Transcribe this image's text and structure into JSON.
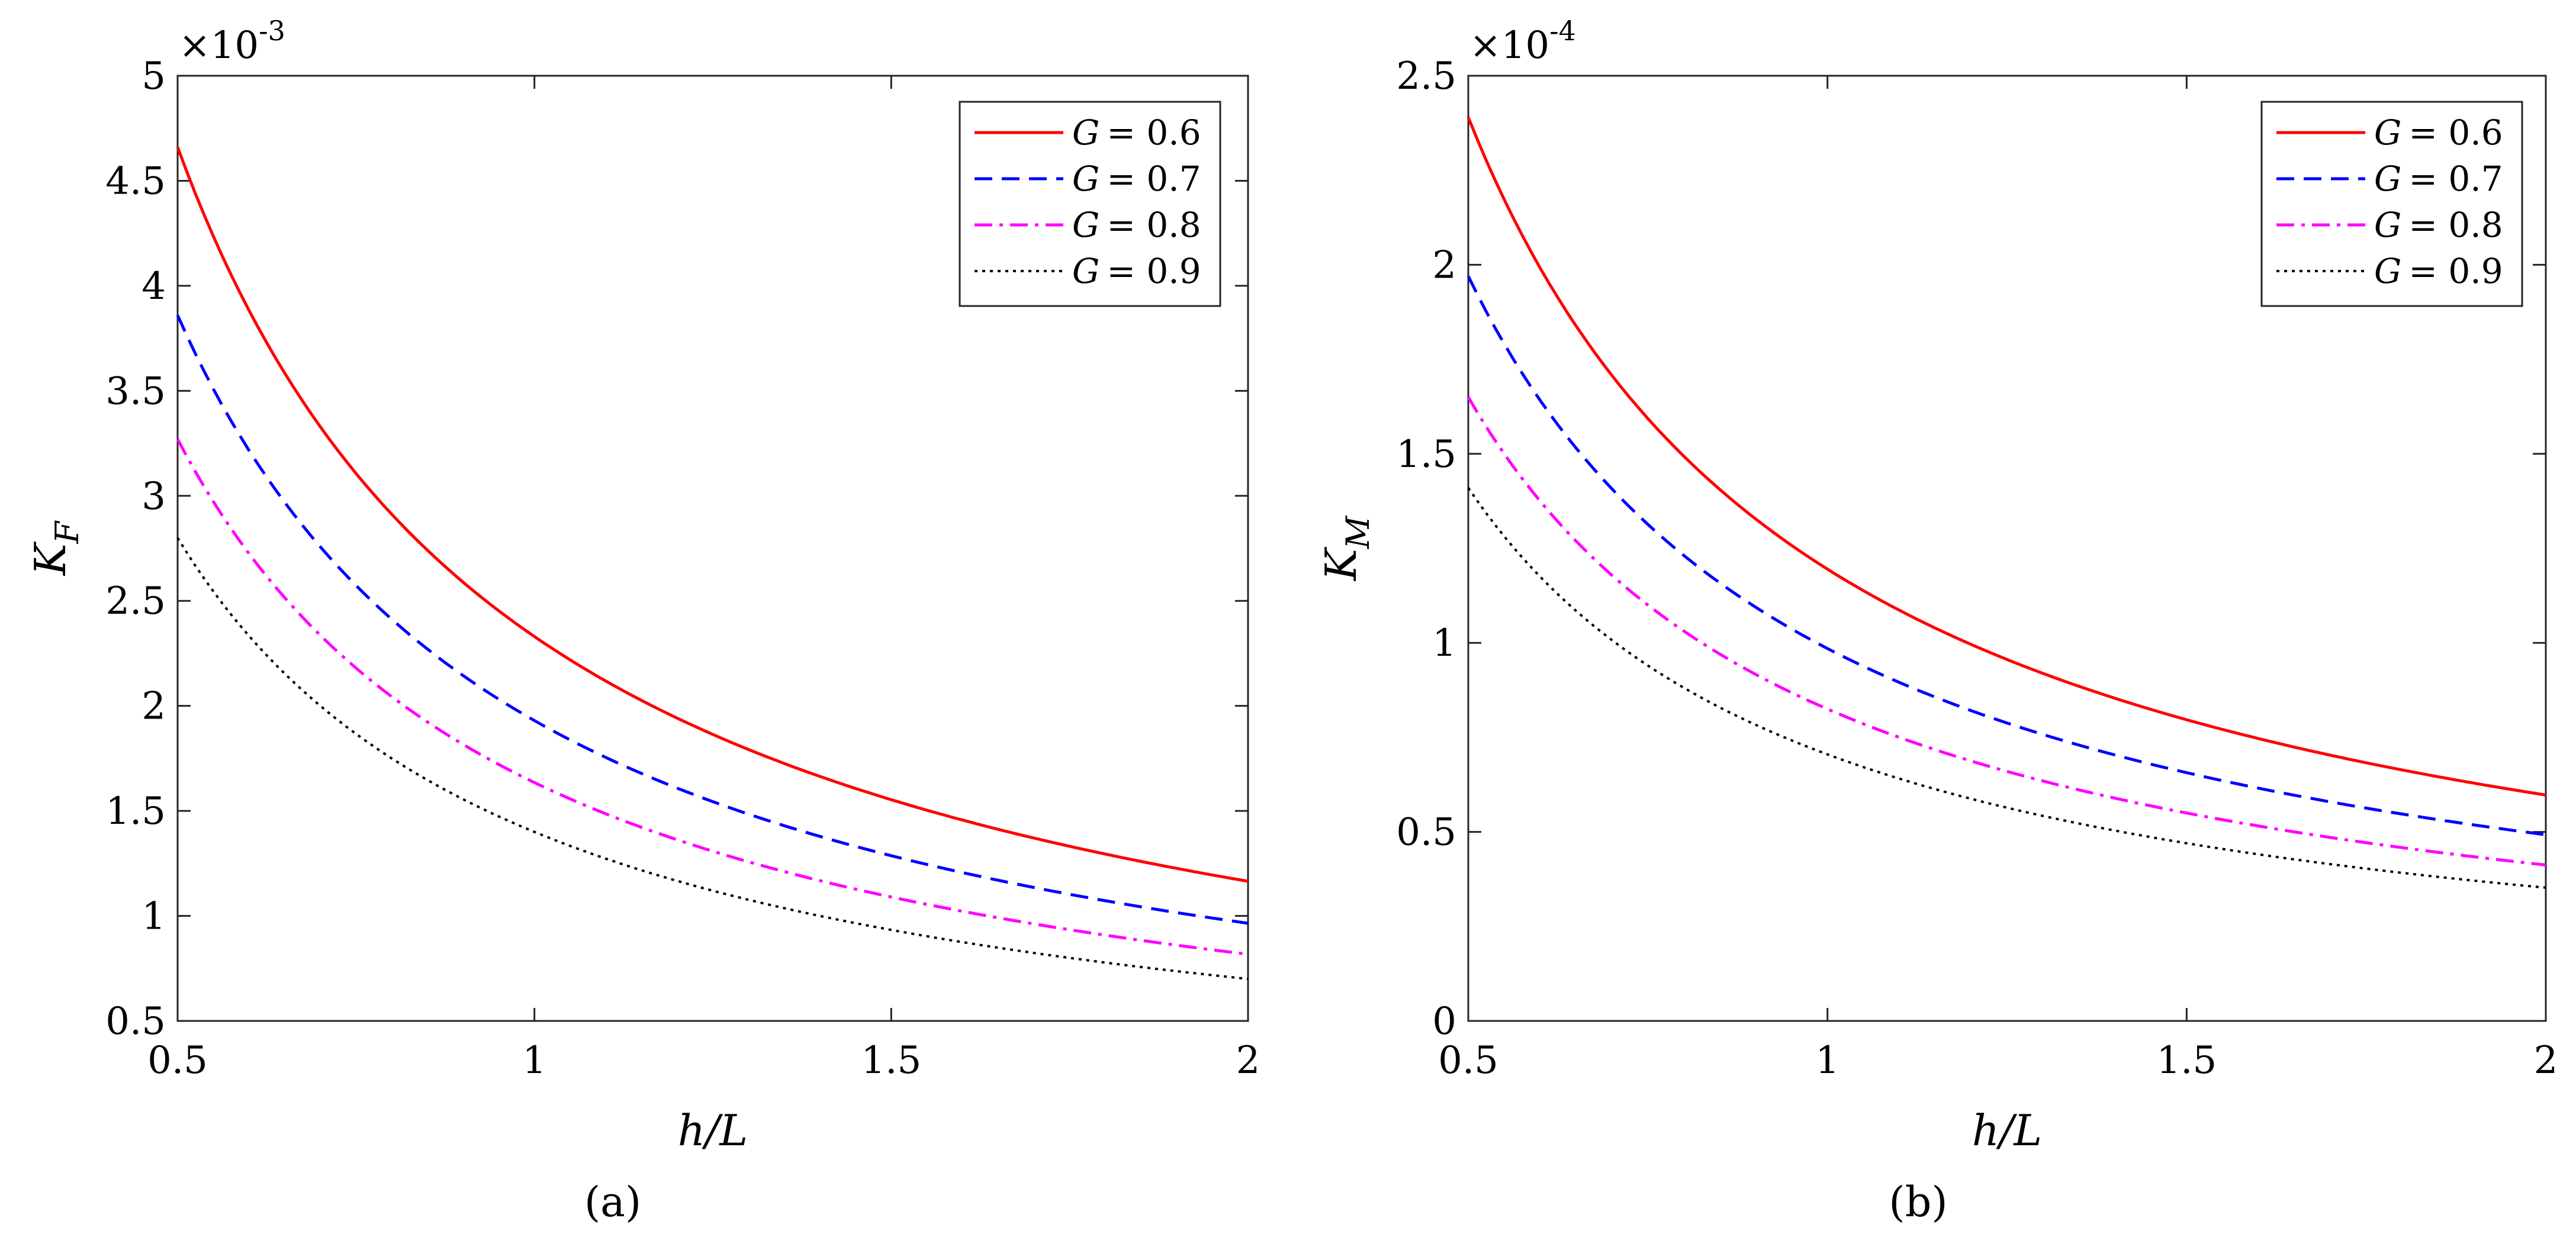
{
  "figure": {
    "captions": [
      "(a)",
      "(b)"
    ]
  },
  "chart_data": [
    {
      "type": "line",
      "panel": "a",
      "caption": "(a)",
      "xlabel": "h/L",
      "ylabel": "K_F",
      "ylabel_main": "K",
      "ylabel_sub": "F",
      "scale_exponent_label": "×10",
      "scale_exponent": "-3",
      "xlim": [
        0.5,
        2
      ],
      "ylim": [
        0.5,
        5
      ],
      "xticks": [
        0.5,
        1,
        1.5,
        2
      ],
      "xtick_labels": [
        "0.5",
        "1",
        "1.5",
        "2"
      ],
      "yticks": [
        0.5,
        1,
        1.5,
        2,
        2.5,
        3,
        3.5,
        4,
        4.5,
        5
      ],
      "ytick_labels": [
        "0.5",
        "1",
        "1.5",
        "2",
        "2.5",
        "3",
        "3.5",
        "4",
        "4.5",
        "5"
      ],
      "x": [
        0.5,
        0.75,
        1,
        1.25,
        1.5,
        1.75,
        2
      ],
      "legend_position": "top-right",
      "series": [
        {
          "name": "G = 0.6",
          "label_var": "G",
          "label_val": "= 0.6",
          "color": "#ff0000",
          "dash": "solid",
          "values": [
            4.66,
            3.1,
            2.33,
            1.86,
            1.55,
            1.33,
            1.17
          ]
        },
        {
          "name": "G = 0.7",
          "label_var": "G",
          "label_val": "= 0.7",
          "color": "#0000ff",
          "dash": "dashed",
          "values": [
            3.86,
            2.58,
            1.94,
            1.55,
            1.29,
            1.11,
            0.97
          ]
        },
        {
          "name": "G = 0.8",
          "label_var": "G",
          "label_val": "= 0.8",
          "color": "#ff00ff",
          "dash": "dashdot",
          "values": [
            3.27,
            2.18,
            1.63,
            1.31,
            1.09,
            0.93,
            0.81
          ]
        },
        {
          "name": "G = 0.9",
          "label_var": "G",
          "label_val": "= 0.9",
          "color": "#000000",
          "dash": "dotted",
          "values": [
            2.8,
            1.87,
            1.4,
            1.12,
            0.93,
            0.8,
            0.7
          ]
        }
      ]
    },
    {
      "type": "line",
      "panel": "b",
      "caption": "(b)",
      "xlabel": "h/L",
      "ylabel": "K_M",
      "ylabel_main": "K",
      "ylabel_sub": "M",
      "scale_exponent_label": "×10",
      "scale_exponent": "-4",
      "xlim": [
        0.5,
        2
      ],
      "ylim": [
        0,
        2.5
      ],
      "xticks": [
        0.5,
        1,
        1.5,
        2
      ],
      "xtick_labels": [
        "0.5",
        "1",
        "1.5",
        "2"
      ],
      "yticks": [
        0,
        0.5,
        1,
        1.5,
        2,
        2.5
      ],
      "ytick_labels": [
        "0",
        "0.5",
        "1",
        "1.5",
        "2",
        "2.5"
      ],
      "x": [
        0.5,
        0.75,
        1,
        1.25,
        1.5,
        1.75,
        2
      ],
      "legend_position": "top-right",
      "series": [
        {
          "name": "G = 0.6",
          "label_var": "G",
          "label_val": "= 0.6",
          "color": "#ff0000",
          "dash": "solid",
          "values": [
            2.39,
            1.6,
            1.19,
            0.95,
            0.8,
            0.68,
            0.6
          ]
        },
        {
          "name": "G = 0.7",
          "label_var": "G",
          "label_val": "= 0.7",
          "color": "#0000ff",
          "dash": "dashed",
          "values": [
            1.97,
            1.31,
            0.98,
            0.79,
            0.66,
            0.56,
            0.49
          ]
        },
        {
          "name": "G = 0.8",
          "label_var": "G",
          "label_val": "= 0.8",
          "color": "#ff00ff",
          "dash": "dashdot",
          "values": [
            1.65,
            1.1,
            0.82,
            0.66,
            0.55,
            0.47,
            0.41
          ]
        },
        {
          "name": "G = 0.9",
          "label_var": "G",
          "label_val": "= 0.9",
          "color": "#000000",
          "dash": "dotted",
          "values": [
            1.41,
            0.94,
            0.7,
            0.56,
            0.47,
            0.4,
            0.35
          ]
        }
      ]
    }
  ]
}
